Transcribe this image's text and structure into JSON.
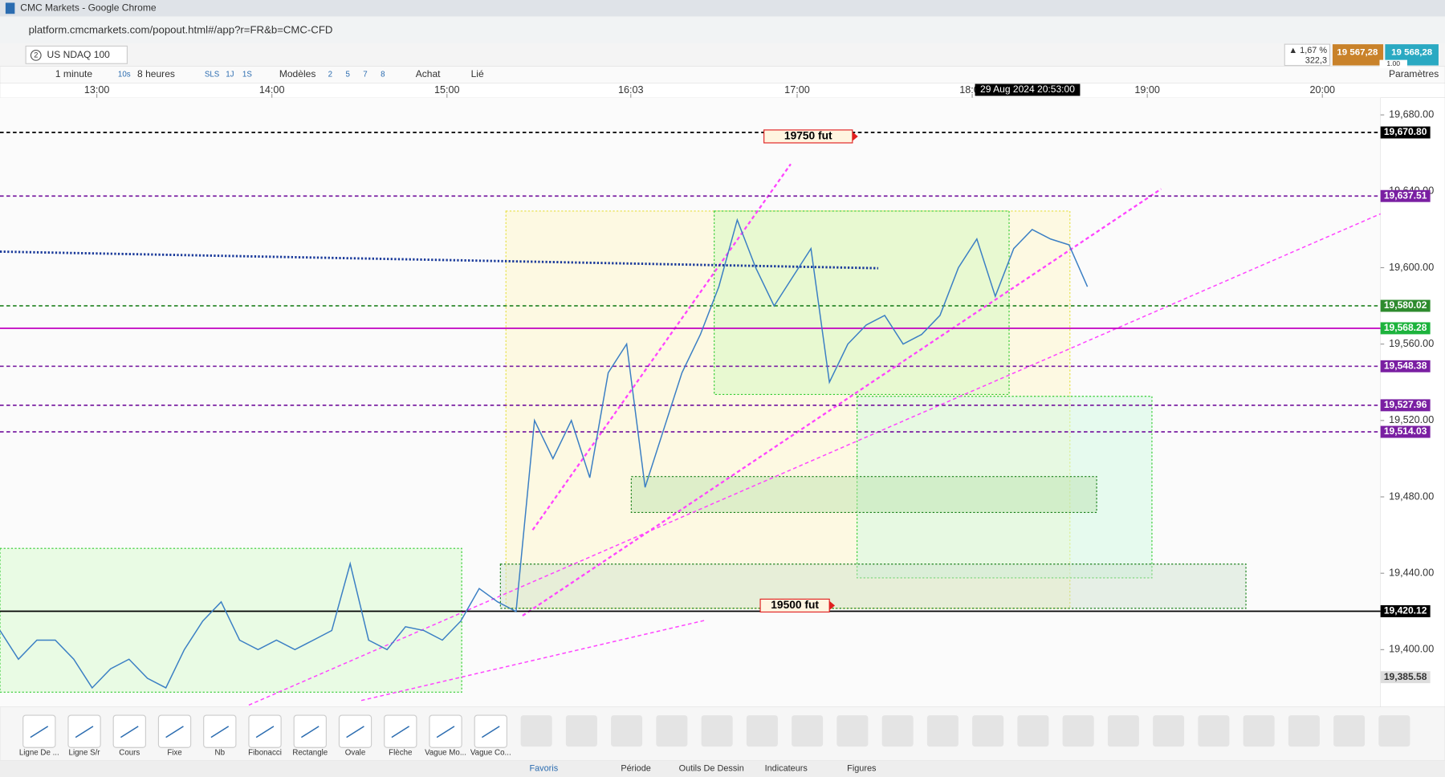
{
  "window": {
    "title": "CMC Markets - Google Chrome",
    "url": "platform.cmcmarkets.com/popout.html#/app?r=FR&b=CMC-CFD"
  },
  "instrument": {
    "tab_number": "2",
    "name": "US NDAQ 100",
    "change": "▲ 1,67 %",
    "change_points": "322,3",
    "sell": "19 567,28",
    "buy": "19 568,28",
    "spread": "1.00"
  },
  "toolbar": {
    "interval": "1 minute",
    "interval_short": "10s",
    "span": "8 heures",
    "quick": [
      "SLS",
      "1J",
      "1S"
    ],
    "templates": "Modèles",
    "numbers": [
      "2",
      "5",
      "7",
      "8"
    ],
    "buy": "Achat",
    "link": "Lié",
    "settings": "Paramètres"
  },
  "chart": {
    "xlim": [
      12.447,
      20.332
    ],
    "xticks": [
      {
        "value": 13,
        "label": "13:00"
      },
      {
        "value": 14,
        "label": "14:00"
      },
      {
        "value": 15,
        "label": "15:00"
      },
      {
        "value": 16.05,
        "label": "16:03"
      },
      {
        "value": 17,
        "label": "17:00"
      },
      {
        "value": 18,
        "label": "18:00"
      },
      {
        "value": 19,
        "label": "19:00"
      },
      {
        "value": 20,
        "label": "20:00"
      }
    ],
    "crosshair": "29 Aug 2024 20:53:00",
    "ylim": [
      19370,
      19689
    ],
    "yticks": [
      {
        "value": 19400,
        "label": "19,400.00"
      },
      {
        "value": 19440,
        "label": "19,440.00"
      },
      {
        "value": 19480,
        "label": "19,480.00"
      },
      {
        "value": 19520,
        "label": "19,520.00"
      },
      {
        "value": 19560,
        "label": "19,560.00"
      },
      {
        "value": 19600,
        "label": "19,600.00"
      },
      {
        "value": 19640,
        "label": "19,640.00"
      },
      {
        "value": 19680,
        "label": "19,680.00"
      }
    ],
    "price": [
      19410,
      19395,
      19405,
      19405,
      19395,
      19380,
      19390,
      19395,
      19385,
      19380,
      19400,
      19415,
      19425,
      19405,
      19400,
      19405,
      19400,
      19405,
      19410,
      19445,
      19405,
      19400,
      19412,
      19410,
      19405,
      19415,
      19432,
      19425,
      19420,
      19520,
      19500,
      19520,
      19490,
      19545,
      19560,
      19485,
      19515,
      19545,
      19565,
      19590,
      19625,
      19600,
      19580,
      19595,
      19610,
      19540,
      19560,
      19570,
      19575,
      19560,
      19565,
      19575,
      19600,
      19615,
      19585,
      19610,
      19620,
      19615,
      19612,
      19590
    ],
    "price_color": "#3b7fc4",
    "levels": [
      {
        "value": 19670.8,
        "label": "19,670.80",
        "color": "#000000",
        "style": "dash"
      },
      {
        "value": 19637.51,
        "label": "19,637.51",
        "color": "#7a1fa2",
        "style": "dash"
      },
      {
        "value": 19580.02,
        "label": "19,580.02",
        "color": "#2e8b2e",
        "style": "dash"
      },
      {
        "value": 19568.28,
        "label": "19,568.28",
        "color": "#1db33d",
        "style": "solid"
      },
      {
        "value": 19548.38,
        "label": "19,548.38",
        "color": "#7a1fa2",
        "style": "dash"
      },
      {
        "value": 19527.96,
        "label": "19,527.96",
        "color": "#7a1fa2",
        "style": "dash"
      },
      {
        "value": 19514.03,
        "label": "19,514.03",
        "color": "#7a1fa2",
        "style": "dash"
      },
      {
        "value": 19420.12,
        "label": "19,420.12",
        "color": "#000000",
        "style": "solid"
      },
      {
        "value": 19385.58,
        "label": "19,385.58",
        "color": "#dddddd",
        "style": "none"
      }
    ],
    "annotations": [
      "19750 fut",
      "19500 fut"
    ]
  },
  "tools": [
    "Ligne De ...",
    "Ligne S/r",
    "Cours",
    "Fixe",
    "Nb",
    "Fibonacci",
    "Rectangle",
    "Ovale",
    "Flèche",
    "Vague Mo...",
    "Vague Co..."
  ],
  "tabs": [
    "Favoris",
    "Période",
    "Outils De Dessin",
    "Indicateurs",
    "Figures"
  ]
}
